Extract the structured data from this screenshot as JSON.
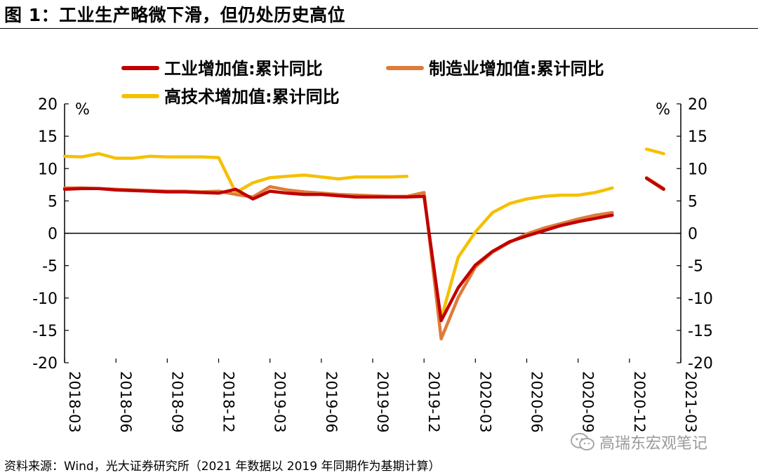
{
  "figure": {
    "title": "图 1：工业生产略微下滑，但仍处历史高位",
    "source": "资料来源：Wind，光大证券研究所（2021 年数据以 2019 年同期作为基期计算）",
    "watermark": "高瑞东宏观笔记",
    "watermark_icon": "wechat-icon"
  },
  "chart_data": {
    "type": "line",
    "left_unit": "%",
    "right_unit": "%",
    "ylim": [
      -20,
      20
    ],
    "y_ticks": [
      20,
      15,
      10,
      5,
      0,
      -5,
      -10,
      -15,
      -20
    ],
    "y_tick_labels": [
      "20",
      "15",
      "10",
      "5",
      "0",
      "-5",
      "-10",
      "-15",
      "-20"
    ],
    "x_tick_labels": [
      "2018-03",
      "2018-06",
      "2018-09",
      "2018-12",
      "2019-03",
      "2019-06",
      "2019-09",
      "2019-12",
      "2020-03",
      "2020-06",
      "2020-09",
      "2020-12",
      "2021-03"
    ],
    "x": [
      "2018-03",
      "2018-04",
      "2018-05",
      "2018-06",
      "2018-07",
      "2018-08",
      "2018-09",
      "2018-10",
      "2018-11",
      "2018-12",
      "2019-01",
      "2019-02",
      "2019-03",
      "2019-04",
      "2019-05",
      "2019-06",
      "2019-07",
      "2019-08",
      "2019-09",
      "2019-10",
      "2019-11",
      "2019-12",
      "2020-01",
      "2020-02",
      "2020-03",
      "2020-04",
      "2020-05",
      "2020-06",
      "2020-07",
      "2020-08",
      "2020-09",
      "2020-10",
      "2020-11",
      "2020-12",
      "2021-01",
      "2021-02",
      "2021-03"
    ],
    "grid": false,
    "legend_position": "top",
    "series": [
      {
        "name": "工业增加值:累计同比",
        "color": "#c00000",
        "values": [
          6.8,
          6.9,
          6.9,
          6.7,
          6.6,
          6.5,
          6.4,
          6.4,
          6.3,
          6.2,
          6.8,
          5.3,
          6.5,
          6.2,
          6.0,
          6.0,
          5.8,
          5.6,
          5.6,
          5.6,
          5.6,
          5.7,
          -13.5,
          -8.4,
          -4.9,
          -2.8,
          -1.3,
          -0.4,
          0.4,
          1.2,
          1.8,
          2.3,
          2.8,
          null,
          8.5,
          6.8,
          null
        ]
      },
      {
        "name": "制造业增加值:累计同比",
        "color": "#e07b39",
        "values": [
          7.0,
          7.0,
          6.9,
          6.8,
          6.7,
          6.6,
          6.5,
          6.5,
          6.4,
          6.5,
          6.0,
          5.6,
          7.2,
          6.7,
          6.4,
          6.2,
          6.0,
          5.9,
          5.8,
          5.7,
          5.7,
          6.3,
          -16.3,
          -9.9,
          -5.2,
          -2.9,
          -1.4,
          -0.1,
          0.8,
          1.5,
          2.2,
          2.8,
          3.2,
          null,
          8.6,
          6.9,
          null
        ]
      },
      {
        "name": "高技术增加值:累计同比",
        "color": "#f5c000",
        "values": [
          11.9,
          11.8,
          12.3,
          11.6,
          11.6,
          11.9,
          11.8,
          11.8,
          11.8,
          11.7,
          6.3,
          7.8,
          8.6,
          8.8,
          9.0,
          8.7,
          8.4,
          8.7,
          8.7,
          8.7,
          8.8,
          null,
          -13.2,
          -3.7,
          0.2,
          3.2,
          4.6,
          5.3,
          5.7,
          5.9,
          5.9,
          6.3,
          7.0,
          null,
          13.0,
          12.3,
          null
        ]
      }
    ]
  }
}
